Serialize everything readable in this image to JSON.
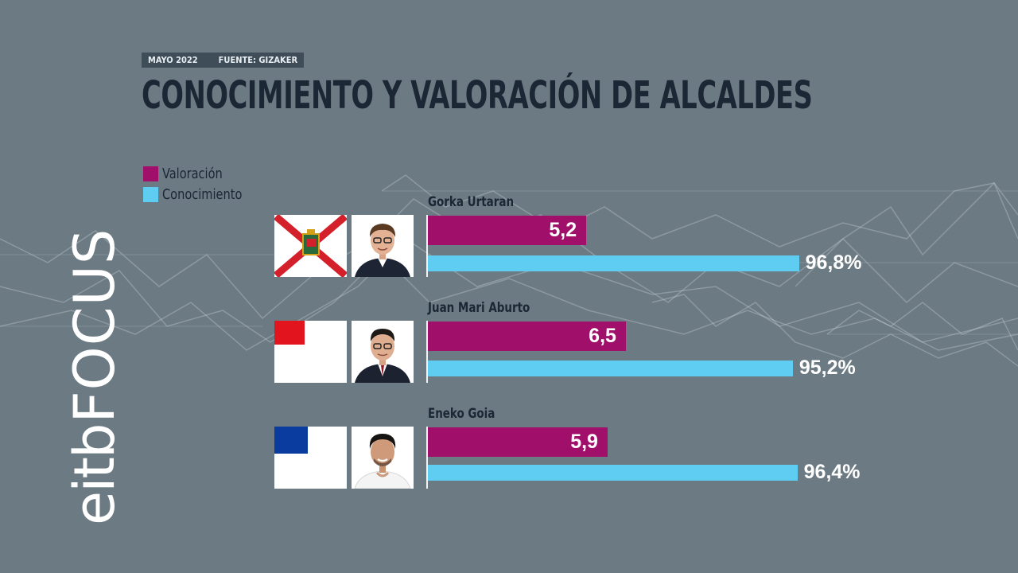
{
  "header": {
    "date": "MAYO 2022",
    "source": "FUENTE: GIZAKER",
    "title": "CONOCIMIENTO Y VALORACIÓN DE ALCALDES"
  },
  "logo": {
    "eitb": "eitb",
    "focus": "FOCUS"
  },
  "colors": {
    "valoracion": "#a0106a",
    "conocimiento": "#5fcdf2",
    "background": "#6c7a83"
  },
  "chart_data": {
    "type": "bar",
    "title": "CONOCIMIENTO Y VALORACIÓN DE ALCALDES",
    "categories": [
      "Gorka Urtaran",
      "Juan Mari Aburto",
      "Eneko Goia"
    ],
    "series": [
      {
        "name": "Valoración",
        "values": [
          5.2,
          6.5,
          5.9
        ],
        "labels": [
          "5,2",
          "6,5",
          "5,9"
        ],
        "unit": ""
      },
      {
        "name": "Conocimiento",
        "values": [
          96.8,
          95.2,
          96.4
        ],
        "labels": [
          "96,8%",
          "95,2%",
          "96,4%"
        ],
        "unit": "%"
      }
    ],
    "legend": [
      "Valoración",
      "Conocimiento"
    ],
    "legend_position": "top-left",
    "orientation": "horizontal",
    "grid": false
  },
  "rows": [
    {
      "name": "Gorka Urtaran",
      "flag_icon": "vitoria-gasteiz-flag-icon",
      "photo_icon": "gorka-urtaran-photo"
    },
    {
      "name": "Juan Mari Aburto",
      "flag_icon": "bilbao-flag-icon",
      "photo_icon": "juan-mari-aburto-photo"
    },
    {
      "name": "Eneko Goia",
      "flag_icon": "donostia-flag-icon",
      "photo_icon": "eneko-goia-photo"
    }
  ]
}
